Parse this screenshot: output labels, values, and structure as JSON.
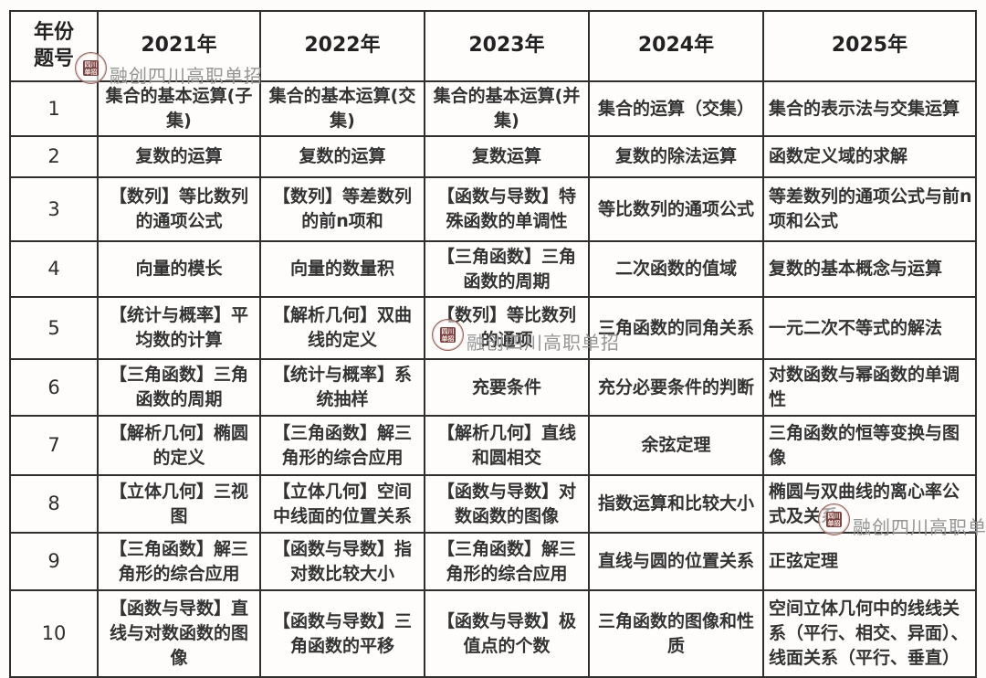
{
  "colors": {
    "table_border": "#2f2f2f",
    "cell_text": "#333333",
    "watermark_text": "#949494",
    "seal_red": "#7a4341",
    "page_background": "#fdfcfa"
  },
  "watermark": {
    "text": "融创四川高职单招",
    "seal": {
      "line1": "四川",
      "line2": "单招"
    }
  },
  "table": {
    "corner": {
      "line1": "年份",
      "line2": "题号"
    },
    "years": [
      "2021年",
      "2022年",
      "2023年",
      "2024年",
      "2025年"
    ],
    "rows": [
      {
        "num": "1",
        "cells": [
          "集合的基本运算(子集)",
          "集合的基本运算(交集)",
          "集合的基本运算(并集)",
          "集合的运算（交集）",
          "集合的表示法与交集运算"
        ]
      },
      {
        "num": "2",
        "cells": [
          "复数的运算",
          "复数的运算",
          "复数运算",
          "复数的除法运算",
          "函数定义域的求解"
        ]
      },
      {
        "num": "3",
        "cells": [
          "【数列】等比数列的通项公式",
          "【数列】等差数列的前n项和",
          "【函数与导数】特殊函数的单调性",
          "等比数列的通项公式",
          "等差数列的通项公式与前n项和公式"
        ]
      },
      {
        "num": "4",
        "cells": [
          "向量的模长",
          "向量的数量积",
          "【三角函数】三角函数的周期",
          "二次函数的值域",
          "复数的基本概念与运算"
        ]
      },
      {
        "num": "5",
        "cells": [
          "【统计与概率】平均数的计算",
          "【解析几何】双曲线的定义",
          "【数列】等比数列的通项",
          "三角函数的同角关系",
          "一元二次不等式的解法"
        ]
      },
      {
        "num": "6",
        "cells": [
          "【三角函数】三角函数的周期",
          "【统计与概率】系统抽样",
          "充要条件",
          "充分必要条件的判断",
          "对数函数与幂函数的单调性"
        ]
      },
      {
        "num": "7",
        "cells": [
          "【解析几何】椭圆的定义",
          "【三角函数】解三角形的综合应用",
          "【解析几何】直线和圆相交",
          "余弦定理",
          "三角函数的恒等变换与图像"
        ]
      },
      {
        "num": "8",
        "cells": [
          "【立体几何】三视图",
          "【立体几何】空间中线面的位置关系",
          "【函数与导数】对数函数的图像",
          "指数运算和比较大小",
          "椭圆与双曲线的离心率公式及关系"
        ]
      },
      {
        "num": "9",
        "cells": [
          "【三角函数】解三角形的综合应用",
          "【函数与导数】指对数比较大小",
          "【三角函数】解三角形的综合应用",
          "直线与圆的位置关系",
          "正弦定理"
        ]
      },
      {
        "num": "10",
        "cells": [
          "【函数与导数】直线与对数函数的图像",
          "【函数与导数】三角函数的平移",
          "【函数与导数】极值点的个数",
          "三角函数的图像和性质",
          "空间立体几何中的线线关系（平行、相交、异面）、线面关系（平行、垂直）"
        ]
      }
    ]
  }
}
